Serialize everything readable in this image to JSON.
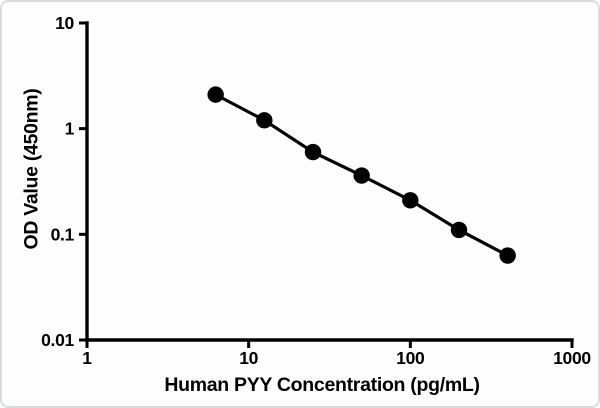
{
  "chart_data": {
    "type": "line",
    "title": "",
    "xlabel": "Human PYY Concentration (pg/mL)",
    "ylabel": "OD Value (450nm)",
    "x_scale": "log",
    "y_scale": "log",
    "xlim": [
      1,
      1000
    ],
    "ylim": [
      0.01,
      10
    ],
    "x_ticks": [
      1,
      10,
      100,
      1000
    ],
    "x_tick_labels": [
      "1",
      "10",
      "100",
      "1000"
    ],
    "y_ticks": [
      0.01,
      0.1,
      1,
      10
    ],
    "y_tick_labels": [
      "0.01",
      "0.1",
      "1",
      "10"
    ],
    "grid": false,
    "legend": null,
    "series": [
      {
        "marker": "filled-circle",
        "color": "#000000",
        "x": [
          6.25,
          12.5,
          25,
          50,
          100,
          200,
          400
        ],
        "y": [
          2.1,
          1.2,
          0.6,
          0.36,
          0.21,
          0.11,
          0.063
        ]
      }
    ]
  },
  "figure": {
    "background": "#fdfdfd",
    "border_color": "#d8dbde",
    "axis_color": "#000000"
  }
}
